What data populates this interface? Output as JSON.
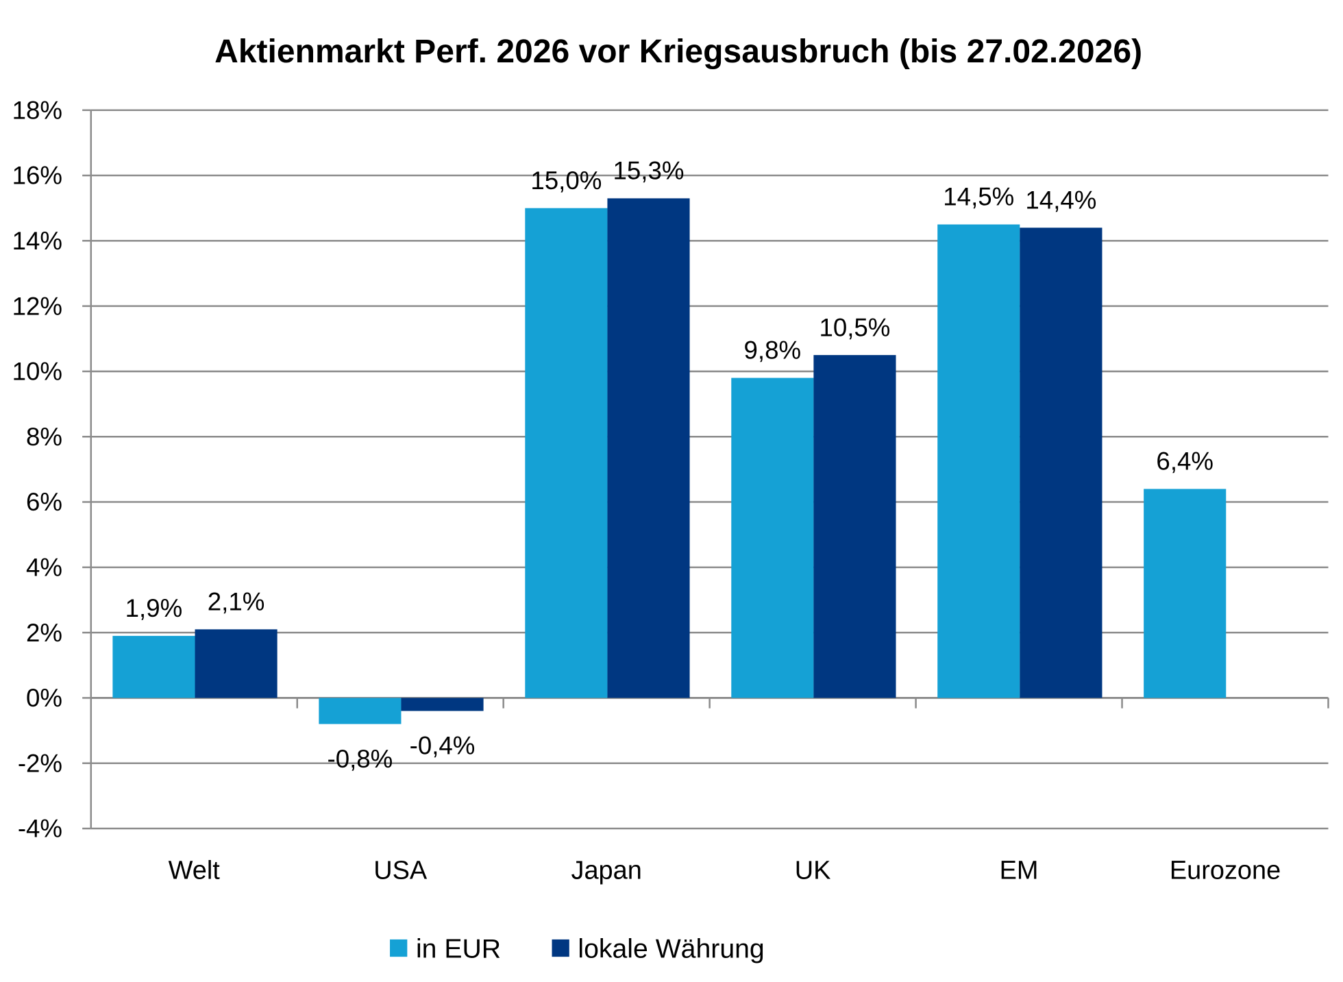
{
  "chart_data": {
    "type": "bar",
    "title": "Aktienmarkt Perf. 2026 vor Kriegsausbruch (bis 27.02.2026)",
    "xlabel": "",
    "ylabel": "",
    "ylim": [
      -4,
      18
    ],
    "yticks": [
      -4,
      -2,
      0,
      2,
      4,
      6,
      8,
      10,
      12,
      14,
      16,
      18
    ],
    "ytick_labels": [
      "-4%",
      "-2%",
      "0%",
      "2%",
      "4%",
      "6%",
      "8%",
      "10%",
      "12%",
      "14%",
      "16%",
      "18%"
    ],
    "grid": true,
    "legend_position": "bottom",
    "categories": [
      "Welt",
      "USA",
      "Japan",
      "UK",
      "EM",
      "Eurozone"
    ],
    "series": [
      {
        "name": "in EUR",
        "color": "#15A1D5",
        "values": [
          1.9,
          -0.8,
          15.0,
          9.8,
          14.5,
          6.4
        ],
        "labels": [
          "1,9%",
          "-0,8%",
          "15,0%",
          "9,8%",
          "14,5%",
          "6,4%"
        ]
      },
      {
        "name": "lokale Währung",
        "color": "#003781",
        "values": [
          2.1,
          -0.4,
          15.3,
          10.5,
          14.4,
          null
        ],
        "labels": [
          "2,1%",
          "-0,4%",
          "15,3%",
          "10,5%",
          "14,4%",
          null
        ]
      }
    ]
  }
}
